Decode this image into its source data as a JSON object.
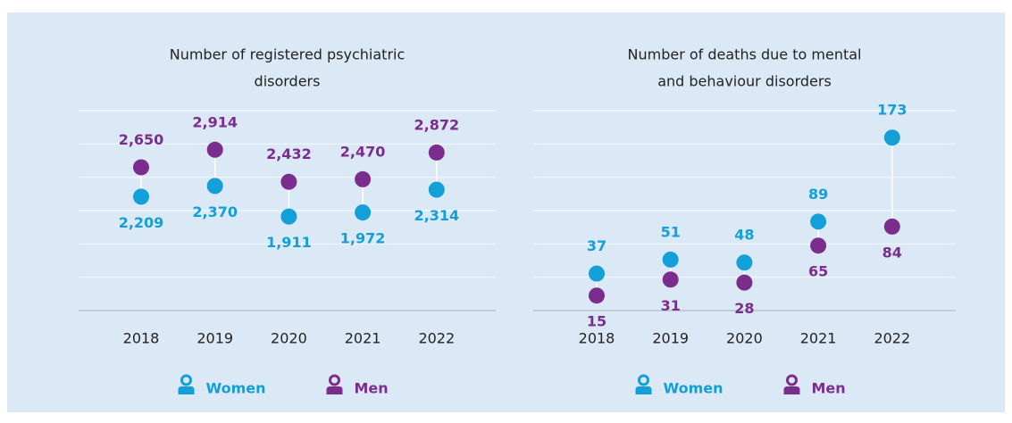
{
  "chart_data": [
    {
      "type": "dumbbell",
      "title": [
        "Number of registered psychiatric",
        "disorders"
      ],
      "categories": [
        "2018",
        "2019",
        "2020",
        "2021",
        "2022"
      ],
      "series": [
        {
          "name": "Women",
          "color": "#139fd8",
          "values": [
            2209,
            2370,
            1911,
            1972,
            2314
          ],
          "value_labels": [
            "2,209",
            "2,370",
            "1,911",
            "1,972",
            "2,314"
          ]
        },
        {
          "name": "Men",
          "color": "#7b2d8e",
          "values": [
            2650,
            2914,
            2432,
            2470,
            2872
          ],
          "value_labels": [
            "2,650",
            "2,914",
            "2,432",
            "2,470",
            "2,872"
          ]
        }
      ],
      "ylim": [
        500,
        3500
      ],
      "yticks": [
        500,
        1000,
        1500,
        2000,
        2500,
        3000,
        3500
      ],
      "grid": true
    },
    {
      "type": "dumbbell",
      "title": [
        "Number of deaths due to mental",
        "and behaviour disorders"
      ],
      "categories": [
        "2018",
        "2019",
        "2020",
        "2021",
        "2022"
      ],
      "series": [
        {
          "name": "Women",
          "color": "#139fd8",
          "values": [
            37,
            51,
            48,
            89,
            173
          ]
        },
        {
          "name": "Men",
          "color": "#7b2d8e",
          "values": [
            15,
            31,
            28,
            65,
            84
          ]
        }
      ],
      "ylim": [
        0,
        200
      ],
      "yticks": [
        0,
        33.3,
        66.7,
        100,
        133.3,
        166.7,
        200
      ],
      "grid": true
    }
  ]
}
